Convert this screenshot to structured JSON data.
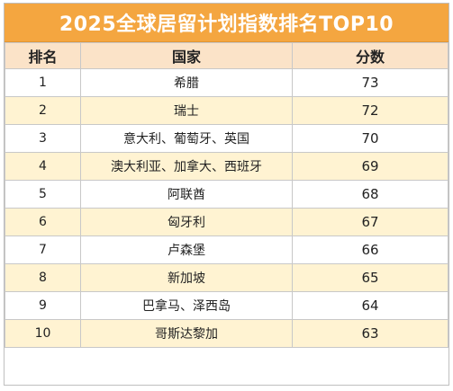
{
  "title": "2025全球居留计划指数排名TOP10",
  "headers": {
    "rank": "排名",
    "country": "国家",
    "score": "分数"
  },
  "colors": {
    "header_bar": "#f4a640",
    "header_row": "#fbe3c8",
    "alt_row": "#fff3d2"
  },
  "rows": [
    {
      "rank": "1",
      "country": "希腊",
      "score": "73"
    },
    {
      "rank": "2",
      "country": "瑞士",
      "score": "72"
    },
    {
      "rank": "3",
      "country": "意大利、葡萄牙、英国",
      "score": "70"
    },
    {
      "rank": "4",
      "country": "澳大利亚、加拿大、西班牙",
      "score": "69"
    },
    {
      "rank": "5",
      "country": "阿联酋",
      "score": "68"
    },
    {
      "rank": "6",
      "country": "匈牙利",
      "score": "67"
    },
    {
      "rank": "7",
      "country": "卢森堡",
      "score": "66"
    },
    {
      "rank": "8",
      "country": "新加坡",
      "score": "65"
    },
    {
      "rank": "9",
      "country": "巴拿马、泽西岛",
      "score": "64"
    },
    {
      "rank": "10",
      "country": "哥斯达黎加",
      "score": "63"
    }
  ]
}
